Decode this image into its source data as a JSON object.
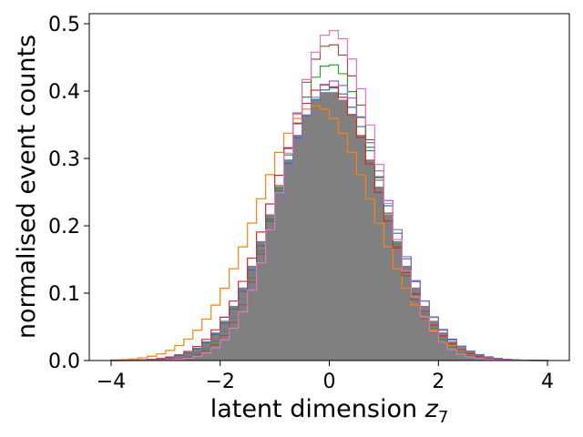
{
  "chart_data": {
    "type": "histogram",
    "xlabel": "latent dimension z",
    "xlabel_main": "latent dimension ",
    "xlabel_var": "z",
    "xlabel_sub": "7",
    "ylabel": "normalised event counts",
    "xlim": [
      -4.4,
      4.4
    ],
    "ylim": [
      0,
      0.515
    ],
    "xticks": [
      -4,
      -2,
      0,
      2,
      4
    ],
    "xtick_labels": [
      "−4",
      "−2",
      "0",
      "2",
      "4"
    ],
    "yticks": [
      0.0,
      0.1,
      0.2,
      0.3,
      0.4,
      0.5
    ],
    "ytick_labels": [
      "0.0",
      "0.1",
      "0.2",
      "0.3",
      "0.4",
      "0.5"
    ],
    "grid": false,
    "legend": "none",
    "bins": {
      "start": -4,
      "end": 4,
      "width": 0.16667
    },
    "filled_color": "#808080",
    "step_series": [
      {
        "color": "#1f77b4",
        "mu": 0.04,
        "sigma": 0.98,
        "peak": 0.405
      },
      {
        "color": "#ff7f0e",
        "mu": -0.25,
        "sigma": 1.05,
        "peak": 0.378
      },
      {
        "color": "#2ca02c",
        "mu": 0.02,
        "sigma": 0.9,
        "peak": 0.44
      },
      {
        "color": "#d62728",
        "mu": -0.05,
        "sigma": 0.97,
        "peak": 0.41
      },
      {
        "color": "#9467bd",
        "mu": 0.08,
        "sigma": 0.95,
        "peak": 0.415
      },
      {
        "color": "#8c564b",
        "mu": 0.02,
        "sigma": 0.86,
        "peak": 0.47
      },
      {
        "color": "#e377c2",
        "mu": 0.06,
        "sigma": 0.84,
        "peak": 0.49
      }
    ],
    "filled_series": {
      "color": "#808080",
      "mu": 0.0,
      "sigma": 0.98,
      "peak": 0.4
    }
  }
}
